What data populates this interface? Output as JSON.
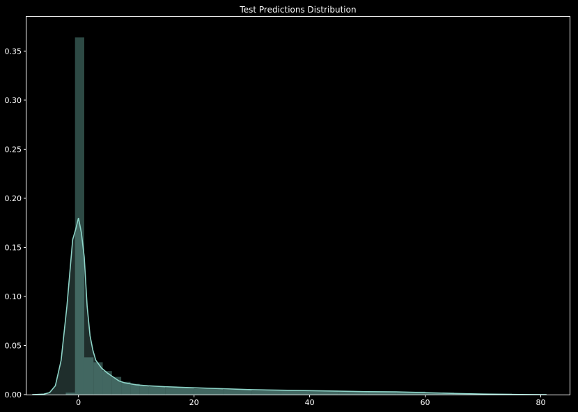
{
  "chart_data": {
    "type": "histogram",
    "title": "Test Predictions Distribution",
    "xlabel": "",
    "ylabel": "",
    "xlim": [
      -9,
      85
    ],
    "ylim": [
      0,
      0.385
    ],
    "xticks": [
      0,
      20,
      40,
      60,
      80
    ],
    "yticks": [
      0.0,
      0.05,
      0.1,
      0.15,
      0.2,
      0.25,
      0.3,
      0.35
    ],
    "ytick_labels": [
      "0.00",
      "0.05",
      "0.10",
      "0.15",
      "0.20",
      "0.25",
      "0.30",
      "0.35"
    ],
    "grid": false,
    "colors": {
      "background": "#000000",
      "frame": "#ffffff",
      "text": "#ffffff",
      "kde_line": "#8dd3c7",
      "bar_fill": "#2f4d48"
    },
    "bins": [
      {
        "x0": -2.2,
        "x1": -0.6,
        "value": 0.002
      },
      {
        "x0": -0.6,
        "x1": 1.0,
        "value": 0.364
      },
      {
        "x0": 1.0,
        "x1": 2.6,
        "value": 0.038
      },
      {
        "x0": 2.6,
        "x1": 4.2,
        "value": 0.033
      },
      {
        "x0": 4.2,
        "x1": 5.8,
        "value": 0.024
      },
      {
        "x0": 5.8,
        "x1": 7.4,
        "value": 0.018
      },
      {
        "x0": 7.4,
        "x1": 9.0,
        "value": 0.013
      },
      {
        "x0": 9.0,
        "x1": 10.6,
        "value": 0.011
      },
      {
        "x0": 10.6,
        "x1": 12.2,
        "value": 0.009
      },
      {
        "x0": 12.2,
        "x1": 15.0,
        "value": 0.008
      },
      {
        "x0": 15.0,
        "x1": 20.0,
        "value": 0.007
      },
      {
        "x0": 20.0,
        "x1": 25.0,
        "value": 0.006
      },
      {
        "x0": 25.0,
        "x1": 30.0,
        "value": 0.005
      },
      {
        "x0": 30.0,
        "x1": 35.0,
        "value": 0.004
      },
      {
        "x0": 35.0,
        "x1": 40.0,
        "value": 0.004
      },
      {
        "x0": 40.0,
        "x1": 45.0,
        "value": 0.004
      },
      {
        "x0": 45.0,
        "x1": 50.0,
        "value": 0.003
      },
      {
        "x0": 50.0,
        "x1": 55.0,
        "value": 0.003
      },
      {
        "x0": 55.0,
        "x1": 60.0,
        "value": 0.003
      },
      {
        "x0": 60.0,
        "x1": 65.0,
        "value": 0.002
      },
      {
        "x0": 65.0,
        "x1": 70.0,
        "value": 0.001
      },
      {
        "x0": 70.0,
        "x1": 75.0,
        "value": 0.001
      },
      {
        "x0": 75.0,
        "x1": 80.0,
        "value": 0.0005
      }
    ],
    "kde": {
      "x": [
        -8,
        -6,
        -5,
        -4,
        -3,
        -2,
        -1,
        -0.5,
        0,
        0.5,
        1,
        1.5,
        2,
        2.5,
        3,
        4,
        5,
        6,
        7,
        8,
        10,
        12,
        15,
        20,
        25,
        30,
        40,
        50,
        55,
        60,
        65,
        70,
        75,
        81
      ],
      "y": [
        0.0,
        0.0005,
        0.002,
        0.009,
        0.035,
        0.09,
        0.158,
        0.168,
        0.18,
        0.165,
        0.14,
        0.09,
        0.06,
        0.045,
        0.035,
        0.027,
        0.022,
        0.018,
        0.014,
        0.012,
        0.01,
        0.009,
        0.008,
        0.007,
        0.006,
        0.005,
        0.004,
        0.003,
        0.0028,
        0.002,
        0.0012,
        0.0006,
        0.0002,
        0.0
      ]
    }
  }
}
